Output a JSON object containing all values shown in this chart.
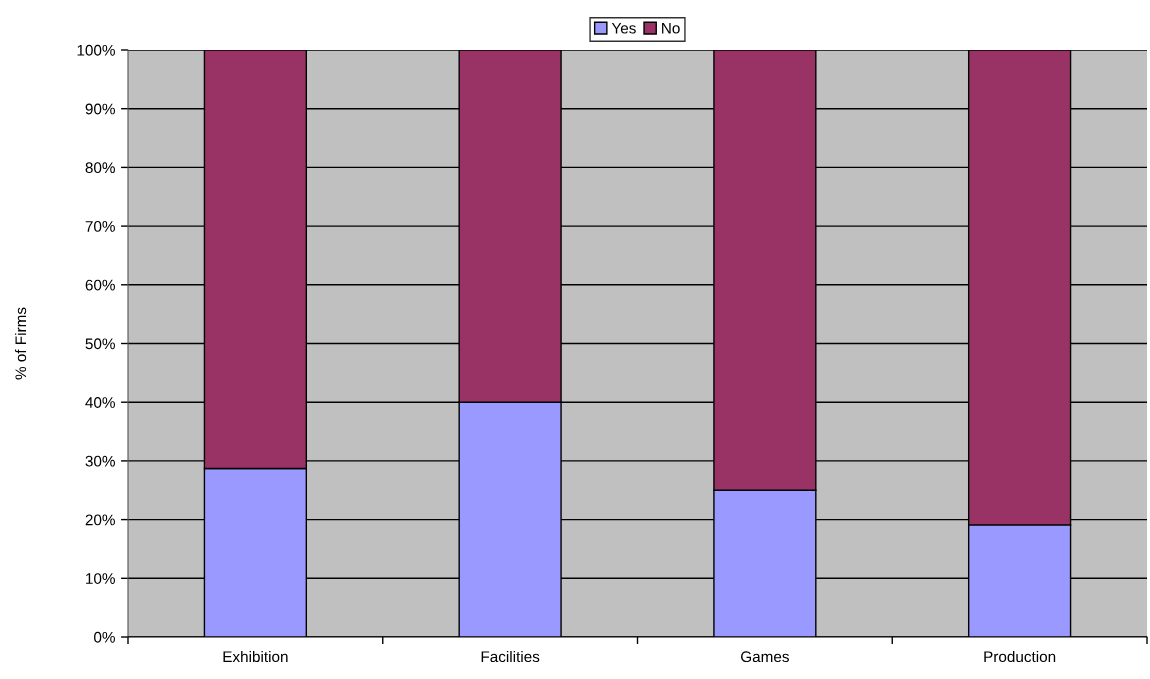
{
  "chart_data": {
    "type": "bar",
    "stacked": true,
    "ylabel": "% of Firms",
    "categories": [
      "Exhibition",
      "Facilities",
      "Games",
      "Production"
    ],
    "series": [
      {
        "name": "Yes",
        "color": "#9999ff",
        "values": [
          28.7,
          40,
          25,
          19.1
        ]
      },
      {
        "name": "No",
        "color": "#993366",
        "values": [
          71.3,
          60,
          75,
          80.9
        ]
      }
    ],
    "ylim": [
      0,
      100
    ],
    "yticks": [
      {
        "value": 0,
        "label": "0%"
      },
      {
        "value": 10,
        "label": "10%"
      },
      {
        "value": 20,
        "label": "20%"
      },
      {
        "value": 30,
        "label": "30%"
      },
      {
        "value": 40,
        "label": "40%"
      },
      {
        "value": 50,
        "label": "50%"
      },
      {
        "value": 60,
        "label": "60%"
      },
      {
        "value": 70,
        "label": "70%"
      },
      {
        "value": 80,
        "label": "80%"
      },
      {
        "value": 90,
        "label": "90%"
      },
      {
        "value": 100,
        "label": "100%"
      }
    ],
    "grid": "y",
    "legend": "top"
  }
}
